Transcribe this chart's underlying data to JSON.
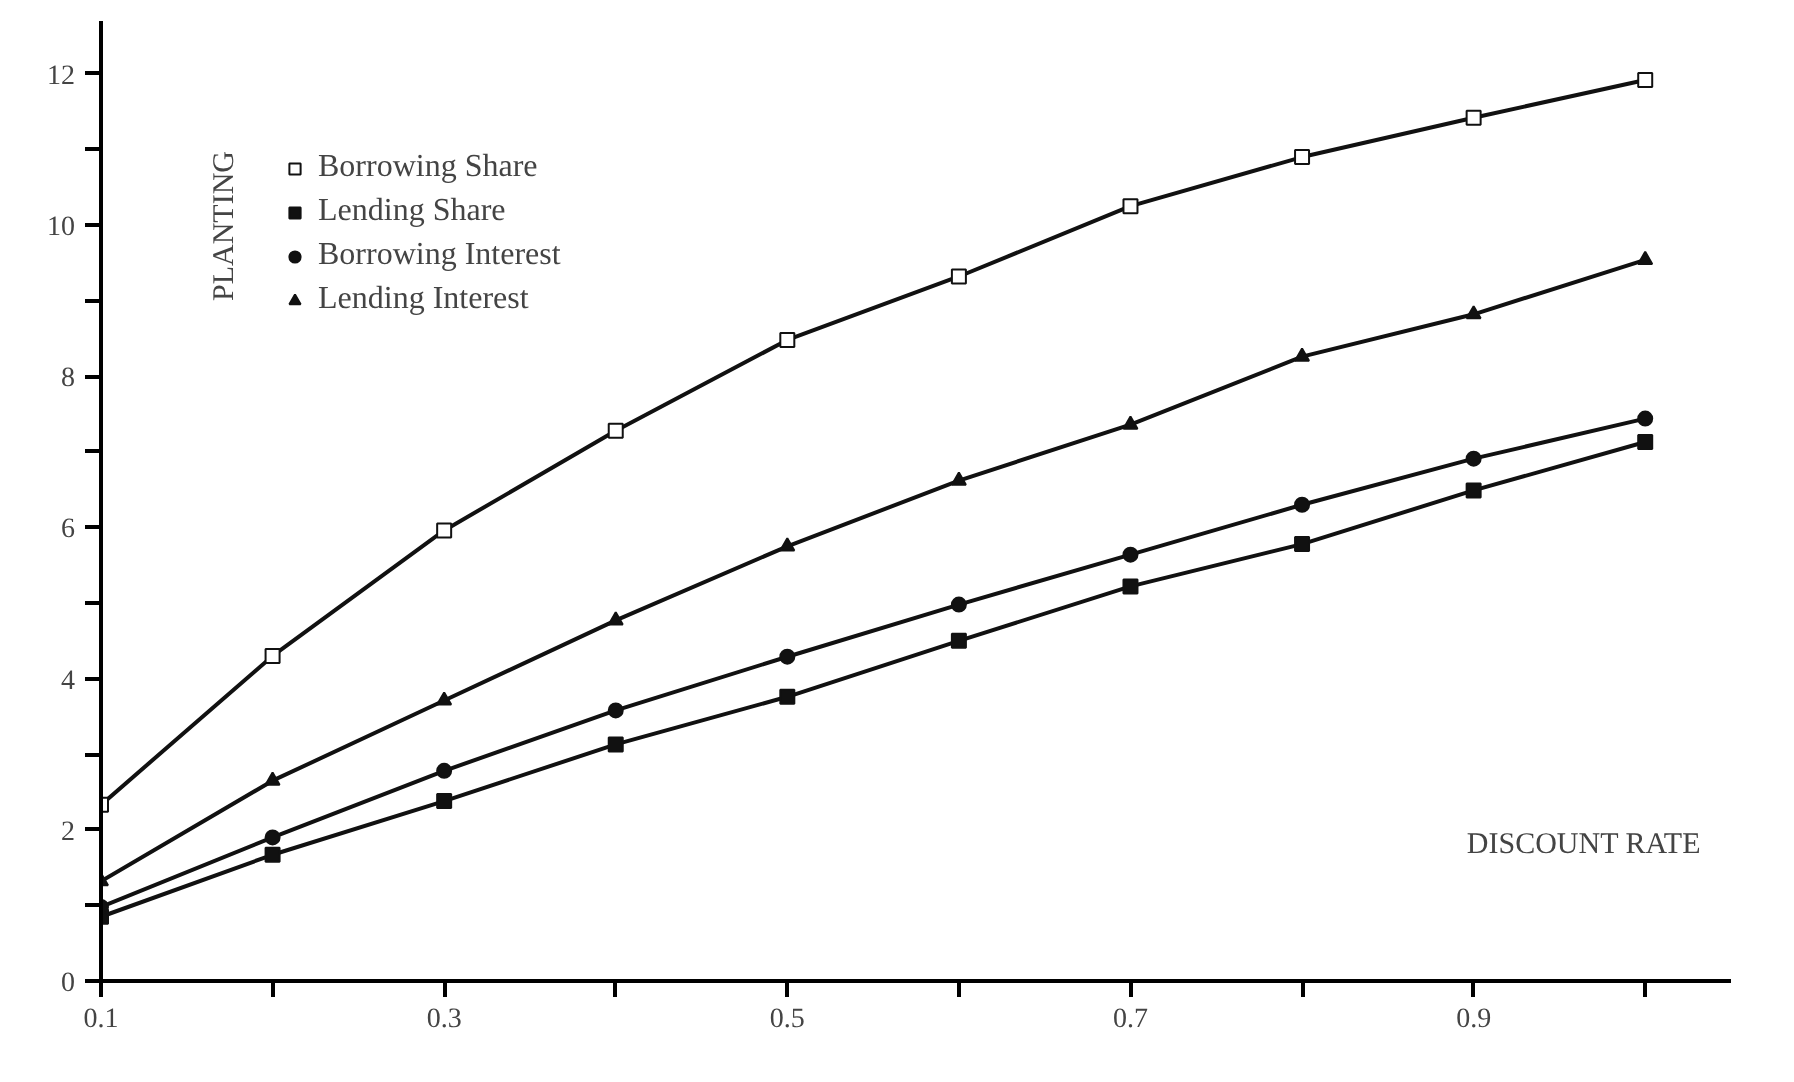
{
  "chart_data": {
    "type": "line",
    "xlabel": "DISCOUNT RATE",
    "ylabel": "PLANTING",
    "x": [
      0.1,
      0.2,
      0.3,
      0.4,
      0.5,
      0.6,
      0.7,
      0.8,
      0.9,
      1.0
    ],
    "series": [
      {
        "name": "Borrowing Share",
        "color": "#111111",
        "marker": "square_open",
        "values": [
          2.33,
          4.3,
          5.96,
          7.28,
          8.48,
          9.32,
          10.25,
          10.9,
          11.42,
          11.92
        ]
      },
      {
        "name": "Lending Share",
        "color": "#111111",
        "marker": "square",
        "values": [
          0.85,
          1.67,
          2.38,
          3.13,
          3.76,
          4.5,
          5.22,
          5.78,
          6.49,
          7.13
        ]
      },
      {
        "name": "Borrowing Interest",
        "color": "#111111",
        "marker": "circle",
        "values": [
          0.98,
          1.9,
          2.78,
          3.58,
          4.29,
          4.98,
          5.64,
          6.3,
          6.91,
          7.44
        ]
      },
      {
        "name": "Lending Interest",
        "color": "#111111",
        "marker": "triangle",
        "values": [
          1.32,
          2.65,
          3.71,
          4.77,
          5.75,
          6.62,
          7.36,
          8.26,
          8.82,
          9.54
        ]
      }
    ],
    "xlim": [
      0.1,
      1.05
    ],
    "ylim": [
      0,
      12.7
    ],
    "xticks": [
      {
        "value": 0.1,
        "label": "0.1"
      },
      {
        "value": 0.2,
        "label": null
      },
      {
        "value": 0.3,
        "label": "0.3"
      },
      {
        "value": 0.4,
        "label": null
      },
      {
        "value": 0.5,
        "label": "0.5"
      },
      {
        "value": 0.6,
        "label": null
      },
      {
        "value": 0.7,
        "label": "0.7"
      },
      {
        "value": 0.8,
        "label": null
      },
      {
        "value": 0.9,
        "label": "0.9"
      },
      {
        "value": 1.0,
        "label": null
      }
    ],
    "yticks": [
      0,
      {
        "value": 1,
        "label": null
      },
      2,
      {
        "value": 3,
        "label": null
      },
      4,
      {
        "value": 5,
        "label": null
      },
      6,
      {
        "value": 7,
        "label": null
      },
      8,
      {
        "value": 9,
        "label": null
      },
      10,
      {
        "value": 11,
        "label": null
      },
      12
    ],
    "grid": false,
    "legend": "top left",
    "line_style": "solid"
  }
}
